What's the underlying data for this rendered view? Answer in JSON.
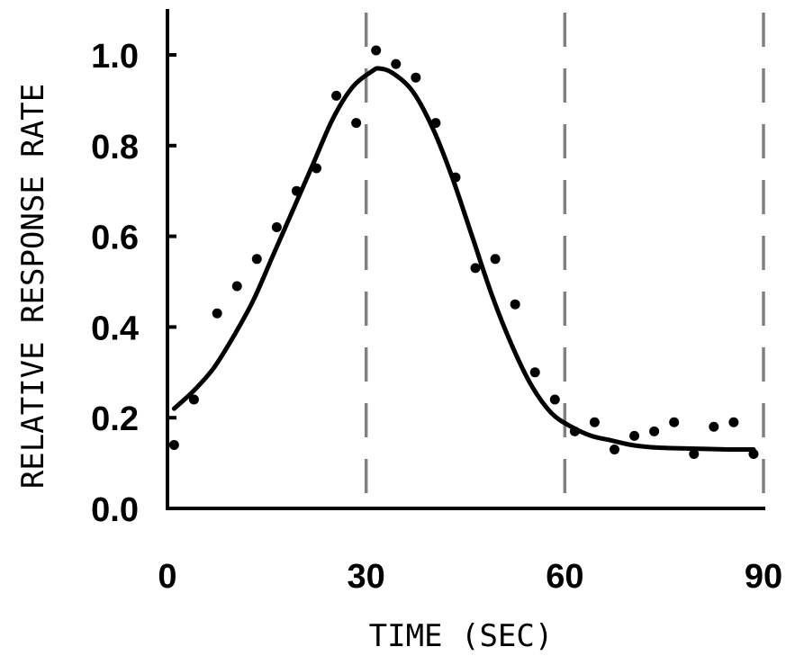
{
  "chart_data": {
    "type": "scatter",
    "title": "",
    "xlabel": "TIME (SEC)",
    "ylabel": "RELATIVE RESPONSE RATE",
    "xlim": [
      0,
      90
    ],
    "ylim": [
      0,
      1.0
    ],
    "x_ticks": [
      0,
      30,
      60,
      90
    ],
    "x_tick_labels": [
      "0",
      "30",
      "60",
      "90"
    ],
    "y_ticks": [
      0,
      0.2,
      0.4,
      0.6,
      0.8,
      1.0
    ],
    "y_tick_labels": [
      "0.0",
      "0.2",
      "0.4",
      "0.6",
      "0.8",
      "1.0"
    ],
    "vertical_gridlines_at": [
      30,
      60,
      90
    ],
    "grid": "dashed vertical lines",
    "legend": "none",
    "colors": {
      "points": "#000000",
      "curve": "#000000",
      "gridlines": "#808080",
      "axes": "#000000"
    },
    "series": [
      {
        "kind": "points",
        "x": [
          1,
          4,
          7.5,
          10.5,
          13.5,
          16.5,
          19.5,
          22.5,
          25.5,
          28.5,
          31.5,
          34.5,
          37.5,
          40.5,
          43.5,
          46.5,
          49.5,
          52.5,
          55.5,
          58.5,
          61.5,
          64.5,
          67.5,
          70.5,
          73.5,
          76.5,
          79.5,
          82.5,
          85.5,
          88.5
        ],
        "y": [
          0.14,
          0.24,
          0.43,
          0.49,
          0.55,
          0.62,
          0.7,
          0.75,
          0.91,
          0.85,
          1.01,
          0.98,
          0.95,
          0.85,
          0.73,
          0.53,
          0.55,
          0.45,
          0.3,
          0.24,
          0.17,
          0.19,
          0.13,
          0.16,
          0.17,
          0.19,
          0.12,
          0.18,
          0.19,
          0.12
        ]
      },
      {
        "kind": "fitted-curve",
        "x": [
          1,
          4,
          7,
          10,
          13,
          16,
          19,
          22,
          25,
          28,
          31,
          32,
          34,
          37,
          40,
          43,
          46,
          49,
          52,
          55,
          58,
          61,
          64,
          67,
          70,
          73,
          76,
          79,
          82,
          85,
          88.5
        ],
        "y": [
          0.22,
          0.26,
          0.31,
          0.38,
          0.46,
          0.56,
          0.66,
          0.76,
          0.86,
          0.93,
          0.965,
          0.97,
          0.96,
          0.92,
          0.84,
          0.73,
          0.6,
          0.47,
          0.36,
          0.27,
          0.21,
          0.18,
          0.16,
          0.15,
          0.14,
          0.135,
          0.133,
          0.132,
          0.131,
          0.13,
          0.13
        ]
      }
    ]
  }
}
